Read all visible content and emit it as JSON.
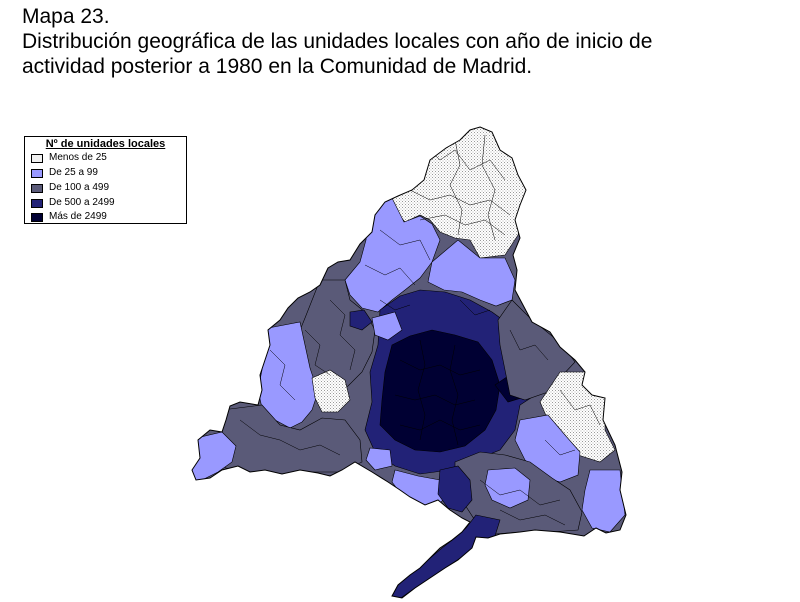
{
  "header": {
    "title_line1": "Mapa 23.",
    "title_line2": "Distribución geográfica de las unidades locales con año de inicio de",
    "title_line3": "actividad posterior a 1980 en la Comunidad de Madrid."
  },
  "legend": {
    "title": "Nº de unidades locales",
    "items": [
      {
        "label": "Menos de 25",
        "color": "#f0f0f0"
      },
      {
        "label": "De 25 a 99",
        "color": "#9999ff"
      },
      {
        "label": "De 100 a 499",
        "color": "#5a5a78"
      },
      {
        "label": "De 500 a 2499",
        "color": "#222277"
      },
      {
        "label": "Más de 2499",
        "color": "#000033"
      }
    ]
  },
  "map": {
    "region_colors": {
      "light": "#f0f0f0",
      "blue": "#9999ff",
      "gray": "#5a5a78",
      "navy": "#222277",
      "dark": "#000033",
      "border": "#000000"
    }
  }
}
